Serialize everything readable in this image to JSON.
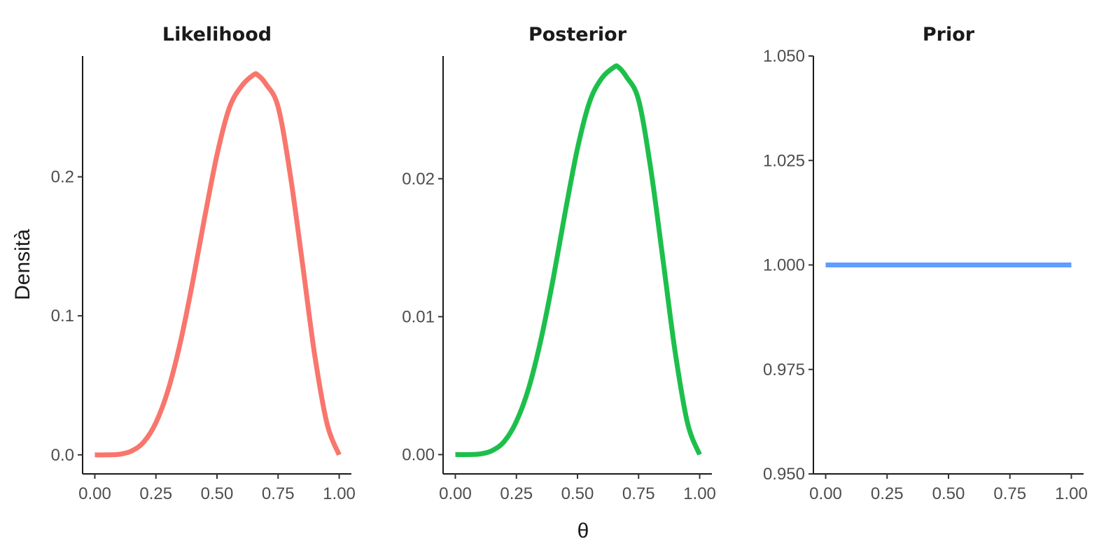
{
  "chart_data": {
    "type": "line",
    "ylabel": "Densità",
    "xlabel": "θ",
    "panels": [
      {
        "title": "Likelihood",
        "color": "#F8766D",
        "xlim": [
          -0.05,
          1.05
        ],
        "ylim": [
          -0.0137,
          0.2869
        ],
        "x_ticks": [
          0,
          0.25,
          0.5,
          0.75,
          1
        ],
        "x_tick_labels": [
          "0.00",
          "0.25",
          "0.50",
          "0.75",
          "1.00"
        ],
        "y_ticks": [
          0,
          0.1,
          0.2
        ],
        "y_tick_labels": [
          "0.0",
          "0.1",
          "0.2"
        ],
        "x": [
          0.0,
          0.05,
          0.1,
          0.15,
          0.2,
          0.25,
          0.3,
          0.35,
          0.4,
          0.45,
          0.5,
          0.55,
          0.6,
          0.65,
          0.667,
          0.7,
          0.75,
          0.8,
          0.85,
          0.9,
          0.95,
          1.0
        ],
        "y": [
          0.0,
          1e-05,
          0.0004,
          0.0027,
          0.0092,
          0.0231,
          0.0467,
          0.0808,
          0.1239,
          0.1712,
          0.2158,
          0.2494,
          0.2651,
          0.2734,
          0.2732,
          0.2668,
          0.2503,
          0.2013,
          0.1373,
          0.0717,
          0.0226,
          0.0
        ]
      },
      {
        "title": "Posterior",
        "color": "#1DBF4B",
        "xlim": [
          -0.05,
          1.05
        ],
        "ylim": [
          -0.0014,
          0.0289
        ],
        "x_ticks": [
          0,
          0.25,
          0.5,
          0.75,
          1
        ],
        "x_tick_labels": [
          "0.00",
          "0.25",
          "0.50",
          "0.75",
          "1.00"
        ],
        "y_ticks": [
          0,
          0.01,
          0.02
        ],
        "y_tick_labels": [
          "0.00",
          "0.01",
          "0.02"
        ],
        "x": [
          0.0,
          0.05,
          0.1,
          0.15,
          0.2,
          0.25,
          0.3,
          0.35,
          0.4,
          0.45,
          0.5,
          0.55,
          0.6,
          0.65,
          0.667,
          0.7,
          0.75,
          0.8,
          0.85,
          0.9,
          0.95,
          1.0
        ],
        "y": [
          0.0,
          1e-06,
          4e-05,
          0.00028,
          0.00095,
          0.0024,
          0.0048,
          0.0083,
          0.0127,
          0.0176,
          0.0222,
          0.0256,
          0.0273,
          0.0281,
          0.0281,
          0.0274,
          0.0257,
          0.0207,
          0.0141,
          0.0074,
          0.0023,
          0.0
        ]
      },
      {
        "title": "Prior",
        "color": "#619CFF",
        "xlim": [
          -0.05,
          1.05
        ],
        "ylim": [
          0.95,
          1.05
        ],
        "x_ticks": [
          0,
          0.25,
          0.5,
          0.75,
          1
        ],
        "x_tick_labels": [
          "0.00",
          "0.25",
          "0.50",
          "0.75",
          "1.00"
        ],
        "y_ticks": [
          0.95,
          0.975,
          1.0,
          1.025,
          1.05
        ],
        "y_tick_labels": [
          "0.950",
          "0.975",
          "1.000",
          "1.025",
          "1.050"
        ],
        "x": [
          0.0,
          1.0
        ],
        "y": [
          1.0,
          1.0
        ]
      }
    ]
  }
}
